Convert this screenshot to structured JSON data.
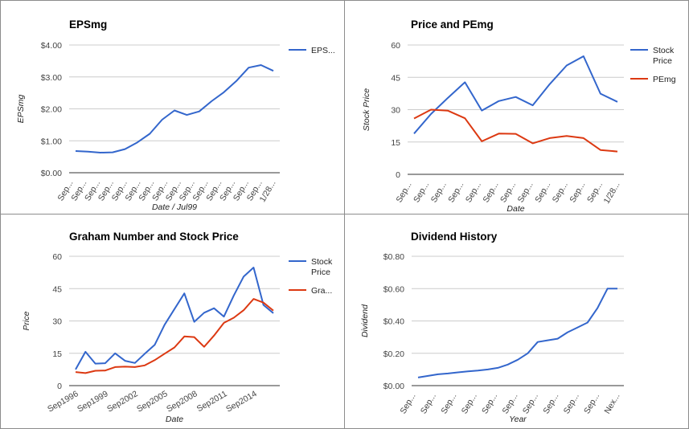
{
  "chart_data": [
    {
      "type": "line",
      "title": "EPSmg",
      "xlabel": "Date / Jul99",
      "ylabel": "EPSmg",
      "ylim": [
        0,
        4
      ],
      "yticks": [
        "$0.00",
        "$1.00",
        "$2.00",
        "$3.00",
        "$4.00"
      ],
      "ytick_values": [
        0,
        1,
        2,
        3,
        4
      ],
      "x_tick_labels": [
        "Sep...",
        "Sep...",
        "Sep...",
        "Sep...",
        "Sep...",
        "Sep...",
        "Sep...",
        "Sep...",
        "Sep...",
        "Sep...",
        "Sep...",
        "Sep...",
        "Sep...",
        "Sep...",
        "Sep...",
        "1/28..."
      ],
      "legend_position": "right",
      "grid": "horizontal",
      "series": [
        {
          "name": "EPS...",
          "color": "#3366cc",
          "values": [
            0.68,
            0.66,
            0.63,
            0.64,
            0.74,
            0.95,
            1.22,
            1.66,
            1.95,
            1.81,
            1.92,
            2.24,
            2.52,
            2.87,
            3.29,
            3.37,
            3.19
          ]
        }
      ]
    },
    {
      "type": "line",
      "title": "Price and PEmg",
      "xlabel": "Date",
      "ylabel": "Stock Price",
      "ylim": [
        0,
        60
      ],
      "yticks": [
        "0",
        "15",
        "30",
        "45",
        "60"
      ],
      "ytick_values": [
        0,
        15,
        30,
        45,
        60
      ],
      "x_tick_labels": [
        "Sep...",
        "Sep...",
        "Sep...",
        "Sep...",
        "Sep...",
        "Sep...",
        "Sep...",
        "Sep...",
        "Sep...",
        "Sep...",
        "Sep...",
        "Sep...",
        "1/28..."
      ],
      "legend_position": "right",
      "grid": "horizontal",
      "series": [
        {
          "name": "Stock Price",
          "legend_lines": [
            "Stock",
            "Price"
          ],
          "color": "#3366cc",
          "values": [
            18.9,
            28.0,
            35.5,
            42.7,
            29.6,
            34.0,
            35.9,
            32.0,
            41.8,
            50.5,
            54.8,
            37.4,
            33.6
          ]
        },
        {
          "name": "PEmg",
          "legend_lines": [
            "PEmg"
          ],
          "color": "#dc3912",
          "values": [
            25.9,
            30.0,
            29.5,
            26.0,
            15.3,
            18.9,
            18.8,
            14.4,
            16.8,
            17.8,
            16.8,
            11.3,
            10.6
          ]
        }
      ]
    },
    {
      "type": "line",
      "title": "Graham Number and Stock Price",
      "xlabel": "Date",
      "ylabel": "Price",
      "ylim": [
        0,
        60
      ],
      "yticks": [
        "0",
        "15",
        "30",
        "45",
        "60"
      ],
      "ytick_values": [
        0,
        15,
        30,
        45,
        60
      ],
      "x_tick_labels": [
        "Sep1996",
        "Sep1999",
        "Sep2002",
        "Sep2005",
        "Sep2008",
        "Sep2011",
        "Sep2014"
      ],
      "legend_position": "right",
      "grid": "horizontal",
      "series": [
        {
          "name": "Stock Price",
          "legend_lines": [
            "Stock",
            "Price"
          ],
          "color": "#3366cc",
          "values": [
            7.5,
            15.7,
            10.2,
            10.4,
            15.0,
            11.5,
            10.5,
            14.8,
            18.9,
            28.2,
            35.5,
            42.8,
            29.6,
            33.8,
            35.9,
            32.0,
            41.8,
            50.6,
            54.8,
            37.4,
            33.6
          ]
        },
        {
          "name": "Gra...",
          "legend_lines": [
            "Gra..."
          ],
          "color": "#dc3912",
          "values": [
            6.3,
            5.8,
            6.9,
            7.0,
            8.6,
            8.8,
            8.6,
            9.4,
            11.8,
            14.8,
            17.7,
            22.8,
            22.5,
            18.0,
            23.2,
            29.1,
            31.5,
            35.0,
            40.2,
            38.5,
            34.8
          ]
        }
      ]
    },
    {
      "type": "line",
      "title": "Dividend History",
      "xlabel": "Year",
      "ylabel": "Dividend",
      "ylim": [
        0,
        0.8
      ],
      "yticks": [
        "$0.00",
        "$0.20",
        "$0.40",
        "$0.60",
        "$0.80"
      ],
      "ytick_values": [
        0,
        0.2,
        0.4,
        0.6,
        0.8
      ],
      "x_tick_labels": [
        "Sep...",
        "Sep...",
        "Sep...",
        "Sep...",
        "Sep...",
        "Sep...",
        "Sep...",
        "Sep...",
        "Sep...",
        "Sep...",
        "Nex..."
      ],
      "legend_position": "none",
      "grid": "horizontal",
      "series": [
        {
          "name": "",
          "color": "#3366cc",
          "values": [
            0.05,
            0.06,
            0.07,
            0.075,
            0.082,
            0.088,
            0.093,
            0.1,
            0.11,
            0.13,
            0.16,
            0.2,
            0.27,
            0.28,
            0.29,
            0.33,
            0.36,
            0.39,
            0.48,
            0.6,
            0.6
          ]
        }
      ]
    }
  ]
}
